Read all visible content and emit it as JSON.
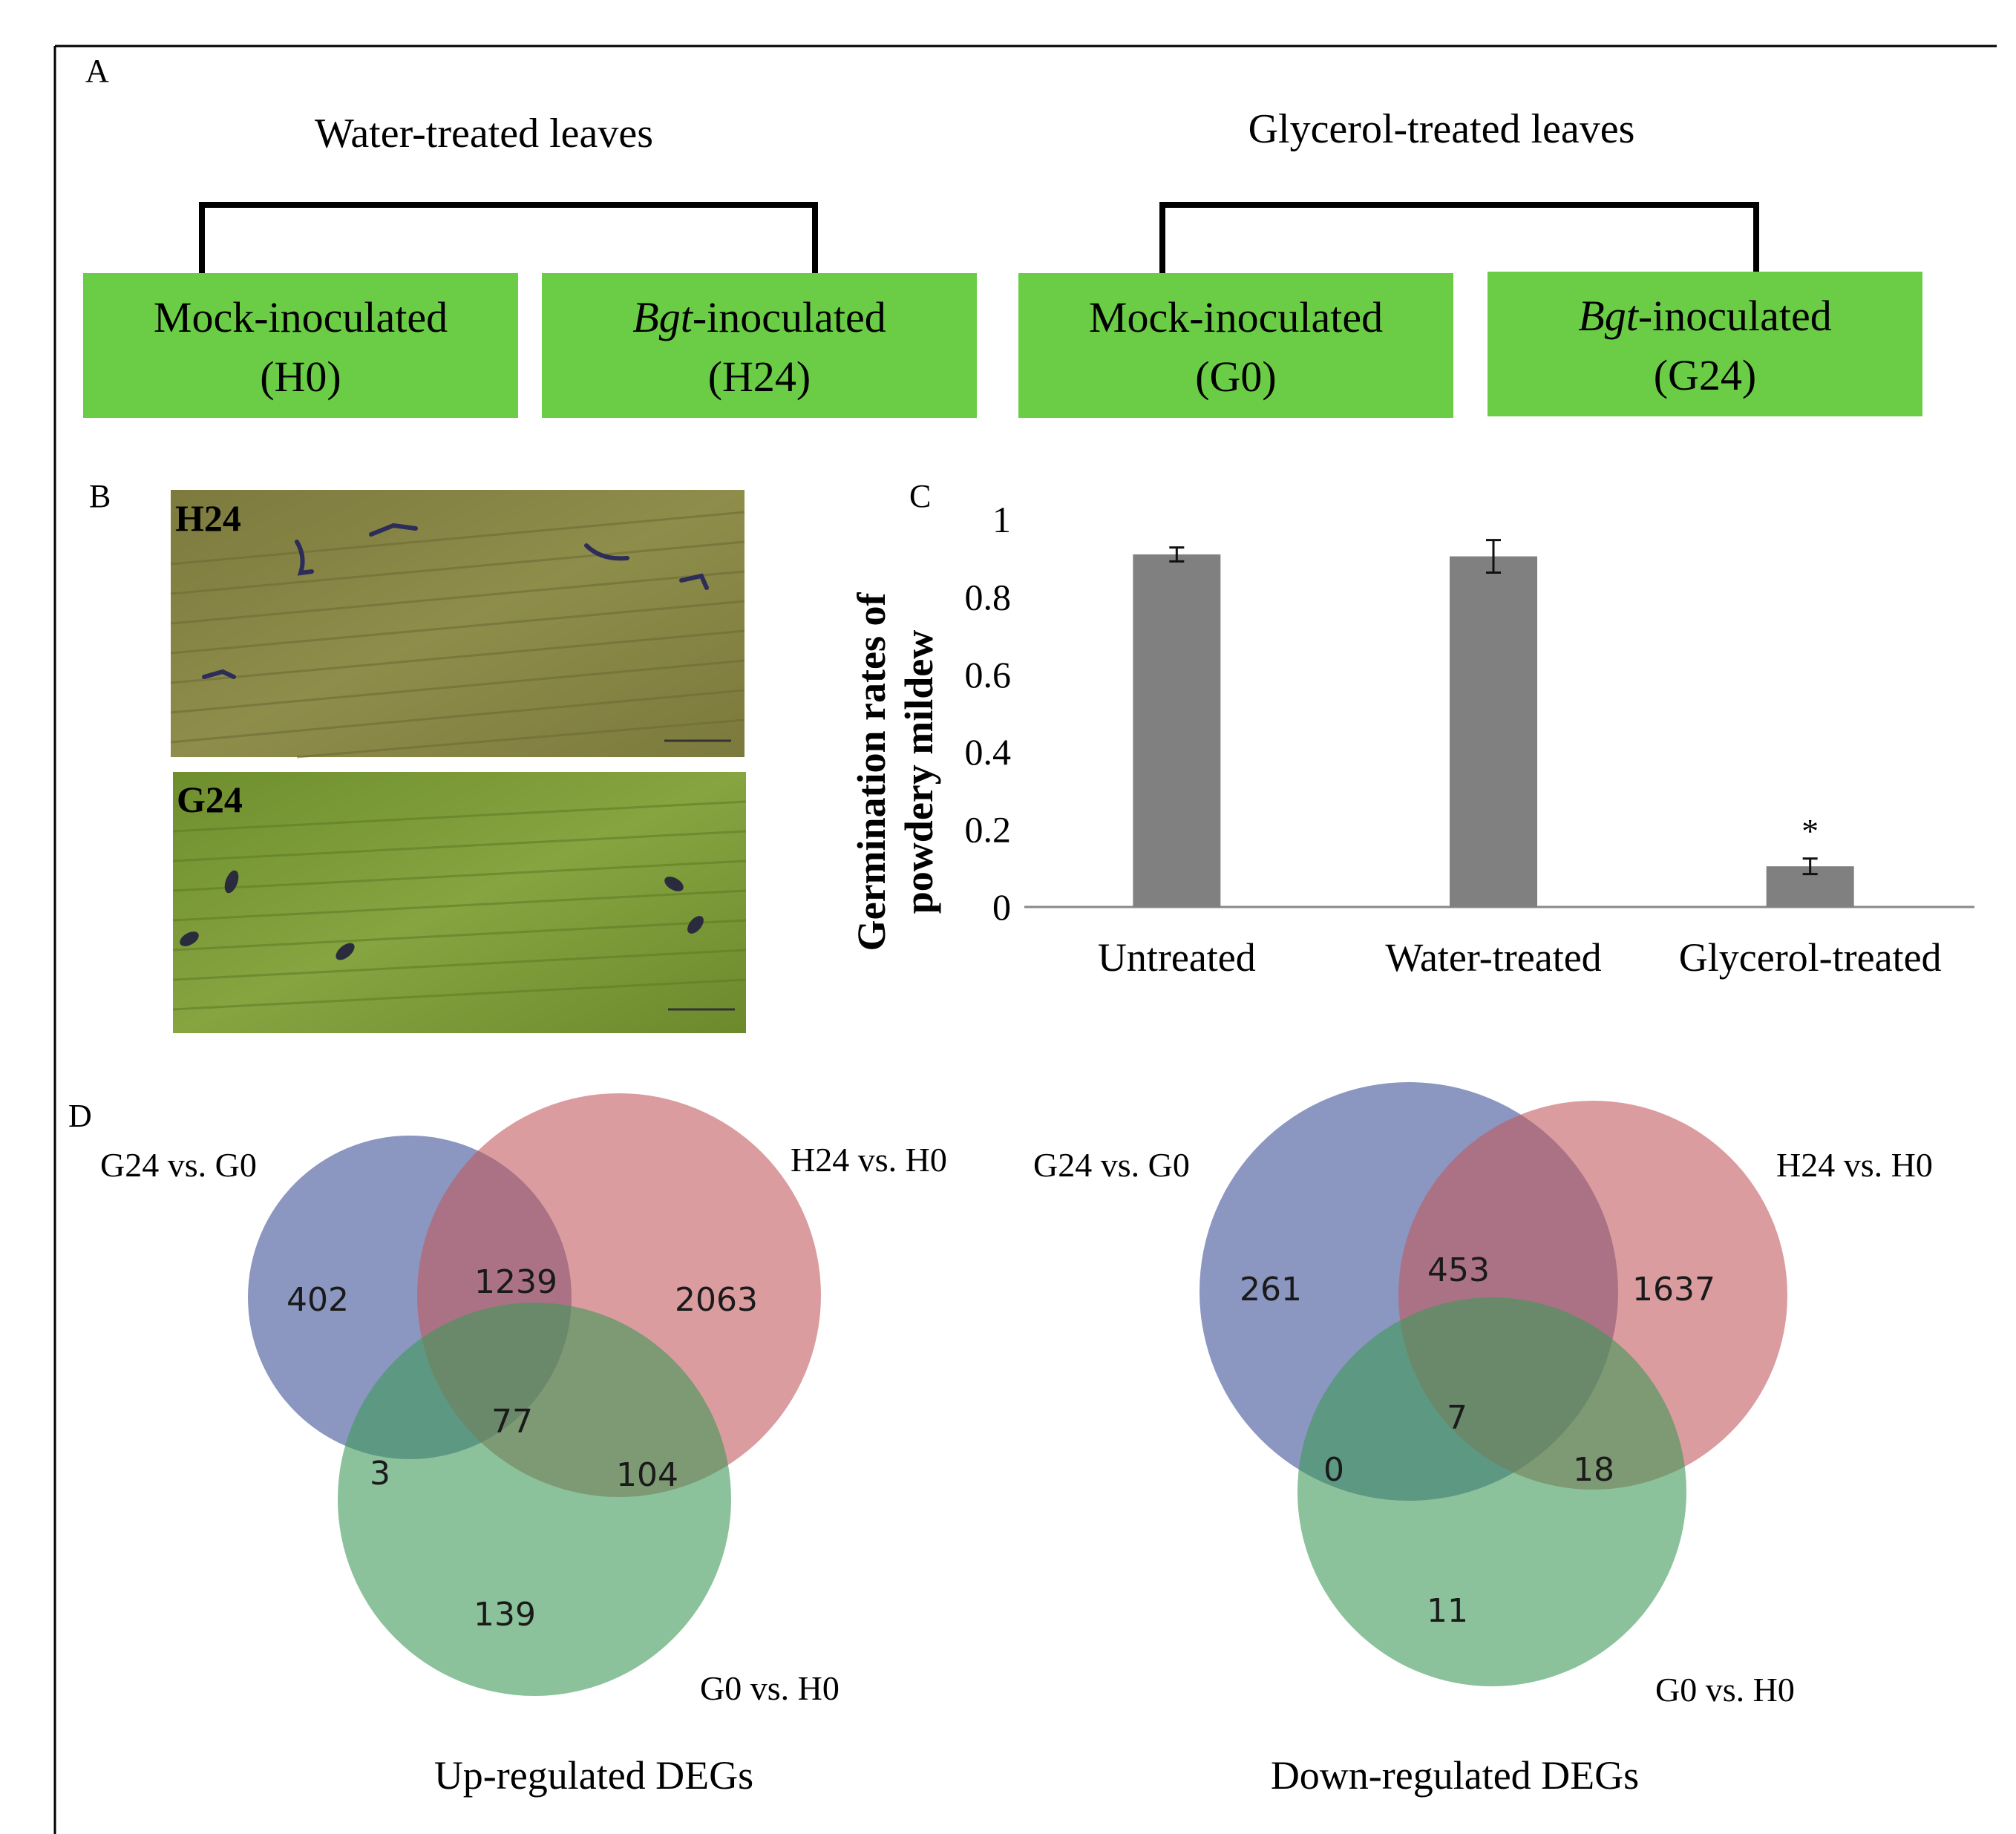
{
  "panel_letters": {
    "a": "A",
    "b": "B",
    "c": "C",
    "d": "D"
  },
  "panel_a": {
    "groups": [
      {
        "title": "Water-treated leaves",
        "boxes": [
          {
            "italic": "",
            "label": "Mock-inoculated",
            "code": "(H0)"
          },
          {
            "italic": "Bgt",
            "label": "-inoculated",
            "code": "(H24)"
          }
        ]
      },
      {
        "title": "Glycerol-treated leaves",
        "boxes": [
          {
            "italic": "",
            "label": "Mock-inoculated",
            "code": "(G0)"
          },
          {
            "italic": "Bgt",
            "label": "-inoculated",
            "code": "(G24)"
          }
        ]
      }
    ],
    "box_color": "#6acd45"
  },
  "panel_b": {
    "top_label": "H24",
    "bottom_label": "G24"
  },
  "chart_data": {
    "type": "bar",
    "title": "",
    "xlabel": "",
    "ylabel": "Germination rates of powdery mildew",
    "ylabel_lines": [
      "Germination rates of",
      "powdery mildew"
    ],
    "categories": [
      "Untreated",
      "Water-treated",
      "Glycerol-treated"
    ],
    "values": [
      0.91,
      0.905,
      0.105
    ],
    "errors": [
      0.018,
      0.042,
      0.02
    ],
    "annotations": [
      "",
      "",
      "*"
    ],
    "ylim": [
      0,
      1
    ],
    "yticks": [
      0,
      0.2,
      0.4,
      0.6,
      0.8,
      1
    ],
    "ytick_labels": [
      "0",
      "0.2",
      "0.4",
      "0.6",
      "0.8",
      "1"
    ],
    "bar_color": "#808080"
  },
  "panel_d": [
    {
      "caption": "Up-regulated DEGs",
      "labels": {
        "a": "G24 vs. G0",
        "b": "H24 vs. H0",
        "c": "G0 vs. H0"
      },
      "counts": {
        "a_only": "402",
        "ab": "1239",
        "b_only": "2063",
        "abc": "77",
        "ac": "3",
        "bc": "104",
        "c_only": "139"
      }
    },
    {
      "caption": "Down-regulated DEGs",
      "labels": {
        "a": "G24 vs. G0",
        "b": "H24 vs. H0",
        "c": "G0 vs. H0"
      },
      "counts": {
        "a_only": "261",
        "ab": "453",
        "b_only": "1637",
        "abc": "7",
        "ac": "0",
        "bc": "18",
        "c_only": "11"
      }
    }
  ],
  "venn_colors": {
    "a": "#5a6aa6",
    "b": "#c25a5f",
    "c": "#3f9a58"
  }
}
